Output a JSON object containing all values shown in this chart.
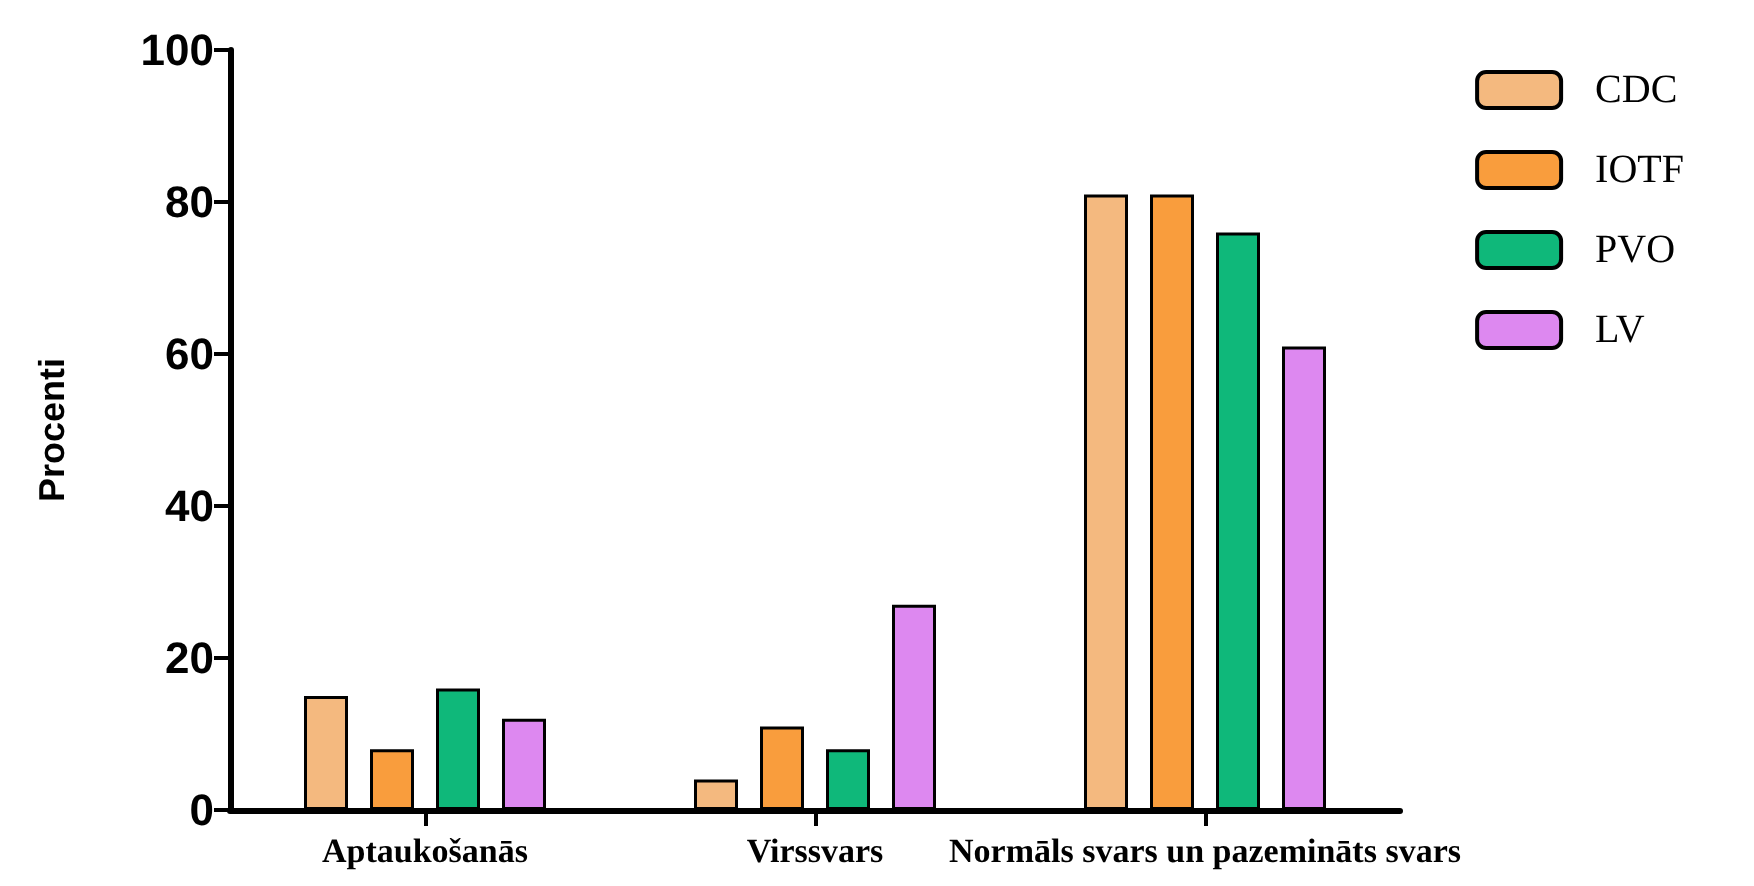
{
  "chart_data": {
    "type": "bar",
    "ylabel": "Procenti",
    "categories": [
      "Aptaukošanās",
      "Virssvars",
      "Normāls svars un pazemināts svars"
    ],
    "series": [
      {
        "name": "CDC",
        "color": "#f4b97f",
        "values": [
          15,
          4,
          81
        ]
      },
      {
        "name": "IOTF",
        "color": "#f99d3d",
        "values": [
          8,
          11,
          81
        ]
      },
      {
        "name": "PVO",
        "color": "#0fb87a",
        "values": [
          16,
          8,
          76
        ]
      },
      {
        "name": "LV",
        "color": "#dd88f0",
        "values": [
          12,
          27,
          61
        ]
      }
    ],
    "ylim": [
      0,
      100
    ],
    "yticks": [
      0,
      20,
      40,
      60,
      80,
      100
    ],
    "grid": false,
    "legend": "top right"
  }
}
